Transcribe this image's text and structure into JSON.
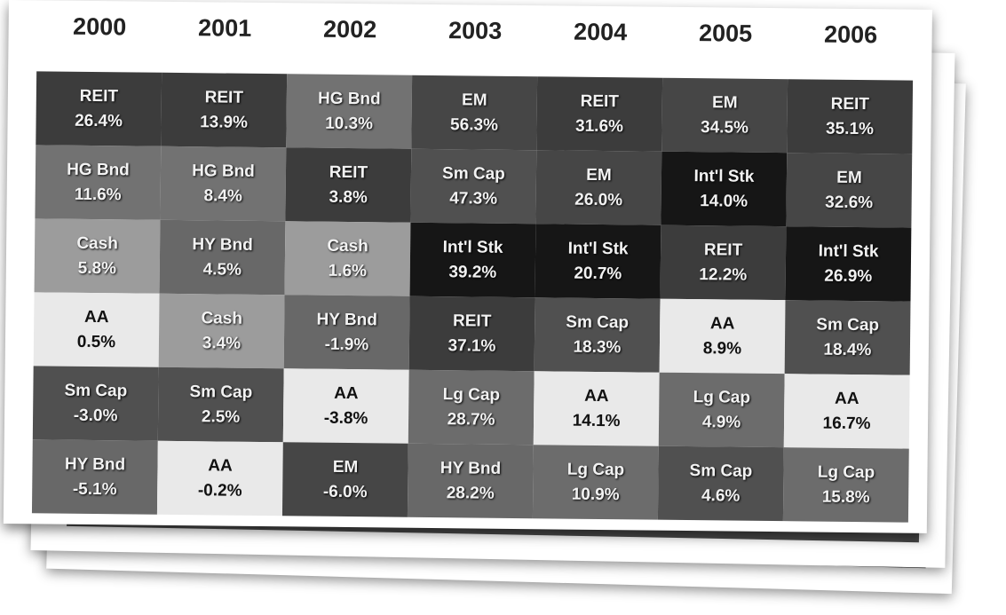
{
  "years": [
    "2000",
    "2001",
    "2002",
    "2003",
    "2004",
    "2005",
    "2006"
  ],
  "columns": [
    [
      {
        "name": "REIT",
        "ret": "26.4%",
        "color": "#3c3c3c"
      },
      {
        "name": "HG Bnd",
        "ret": "11.6%",
        "color": "#727272"
      },
      {
        "name": "Cash",
        "ret": "5.8%",
        "color": "#9c9c9c"
      },
      {
        "name": "AA",
        "ret": "0.5%",
        "color": "#e9e9e9"
      },
      {
        "name": "Sm Cap",
        "ret": "-3.0%",
        "color": "#505050"
      },
      {
        "name": "HY Bnd",
        "ret": "-5.1%",
        "color": "#686868"
      }
    ],
    [
      {
        "name": "REIT",
        "ret": "13.9%",
        "color": "#3c3c3c"
      },
      {
        "name": "HG Bnd",
        "ret": "8.4%",
        "color": "#727272"
      },
      {
        "name": "HY Bnd",
        "ret": "4.5%",
        "color": "#686868"
      },
      {
        "name": "Cash",
        "ret": "3.4%",
        "color": "#9c9c9c"
      },
      {
        "name": "Sm Cap",
        "ret": "2.5%",
        "color": "#505050"
      },
      {
        "name": "AA",
        "ret": "-0.2%",
        "color": "#e9e9e9"
      }
    ],
    [
      {
        "name": "HG Bnd",
        "ret": "10.3%",
        "color": "#727272"
      },
      {
        "name": "REIT",
        "ret": "3.8%",
        "color": "#3c3c3c"
      },
      {
        "name": "Cash",
        "ret": "1.6%",
        "color": "#9c9c9c"
      },
      {
        "name": "HY Bnd",
        "ret": "-1.9%",
        "color": "#686868"
      },
      {
        "name": "AA",
        "ret": "-3.8%",
        "color": "#e9e9e9"
      },
      {
        "name": "EM",
        "ret": "-6.0%",
        "color": "#464646"
      }
    ],
    [
      {
        "name": "EM",
        "ret": "56.3%",
        "color": "#464646"
      },
      {
        "name": "Sm Cap",
        "ret": "47.3%",
        "color": "#505050"
      },
      {
        "name": "Int'l Stk",
        "ret": "39.2%",
        "color": "#161616"
      },
      {
        "name": "REIT",
        "ret": "37.1%",
        "color": "#3c3c3c"
      },
      {
        "name": "Lg Cap",
        "ret": "28.7%",
        "color": "#6c6c6c"
      },
      {
        "name": "HY Bnd",
        "ret": "28.2%",
        "color": "#686868"
      }
    ],
    [
      {
        "name": "REIT",
        "ret": "31.6%",
        "color": "#3c3c3c"
      },
      {
        "name": "EM",
        "ret": "26.0%",
        "color": "#464646"
      },
      {
        "name": "Int'l Stk",
        "ret": "20.7%",
        "color": "#161616"
      },
      {
        "name": "Sm Cap",
        "ret": "18.3%",
        "color": "#505050"
      },
      {
        "name": "AA",
        "ret": "14.1%",
        "color": "#e9e9e9"
      },
      {
        "name": "Lg Cap",
        "ret": "10.9%",
        "color": "#6c6c6c"
      }
    ],
    [
      {
        "name": "EM",
        "ret": "34.5%",
        "color": "#464646"
      },
      {
        "name": "Int'l Stk",
        "ret": "14.0%",
        "color": "#161616"
      },
      {
        "name": "REIT",
        "ret": "12.2%",
        "color": "#3c3c3c"
      },
      {
        "name": "AA",
        "ret": "8.9%",
        "color": "#e9e9e9"
      },
      {
        "name": "Lg Cap",
        "ret": "4.9%",
        "color": "#6c6c6c"
      },
      {
        "name": "Sm Cap",
        "ret": "4.6%",
        "color": "#505050"
      }
    ],
    [
      {
        "name": "REIT",
        "ret": "35.1%",
        "color": "#3c3c3c"
      },
      {
        "name": "EM",
        "ret": "32.6%",
        "color": "#464646"
      },
      {
        "name": "Int'l Stk",
        "ret": "26.9%",
        "color": "#161616"
      },
      {
        "name": "Sm Cap",
        "ret": "18.4%",
        "color": "#505050"
      },
      {
        "name": "AA",
        "ret": "16.7%",
        "color": "#e9e9e9"
      },
      {
        "name": "Lg Cap",
        "ret": "15.8%",
        "color": "#6c6c6c"
      }
    ]
  ]
}
